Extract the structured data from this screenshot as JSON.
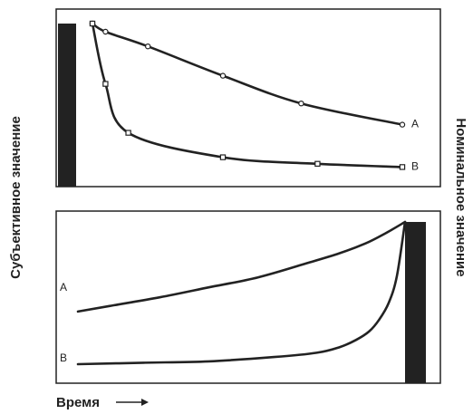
{
  "chart_data": {
    "type": "line",
    "xlabel": "Время",
    "ylabel_left": "Субъективное значение",
    "ylabel_right": "Номинальное значение",
    "line_color": "#222222",
    "bar_color": "#222222",
    "panels": [
      {
        "xlim": [
          0,
          1
        ],
        "ylim": [
          0,
          1
        ],
        "reward_bar": {
          "x": 0,
          "value": 1
        },
        "series": [
          {
            "name": "A",
            "marker": "circle",
            "x": [
              0.05,
              0.09,
              0.22,
              0.45,
              0.69,
              1.0
            ],
            "y": [
              1.0,
              0.95,
              0.86,
              0.68,
              0.51,
              0.38
            ]
          },
          {
            "name": "B",
            "marker": "square",
            "x": [
              0.05,
              0.09,
              0.16,
              0.45,
              0.74,
              1.0
            ],
            "y": [
              1.0,
              0.63,
              0.33,
              0.18,
              0.14,
              0.12
            ]
          }
        ]
      },
      {
        "xlim": [
          0,
          1
        ],
        "ylim": [
          0,
          1
        ],
        "reward_bar": {
          "x": 1,
          "value": 1
        },
        "series": [
          {
            "name": "A",
            "x": [
              0.0,
              0.1,
              0.25,
              0.4,
              0.55,
              0.7,
              0.8,
              0.88,
              0.94,
              1.0
            ],
            "y": [
              0.37,
              0.41,
              0.47,
              0.54,
              0.61,
              0.71,
              0.78,
              0.85,
              0.92,
              1.0
            ]
          },
          {
            "name": "B",
            "x": [
              0.0,
              0.2,
              0.4,
              0.6,
              0.73,
              0.8,
              0.85,
              0.89,
              0.92,
              0.95,
              0.975,
              1.0
            ],
            "y": [
              0.0,
              0.01,
              0.02,
              0.05,
              0.08,
              0.12,
              0.17,
              0.23,
              0.31,
              0.43,
              0.62,
              1.0
            ]
          }
        ]
      }
    ]
  }
}
